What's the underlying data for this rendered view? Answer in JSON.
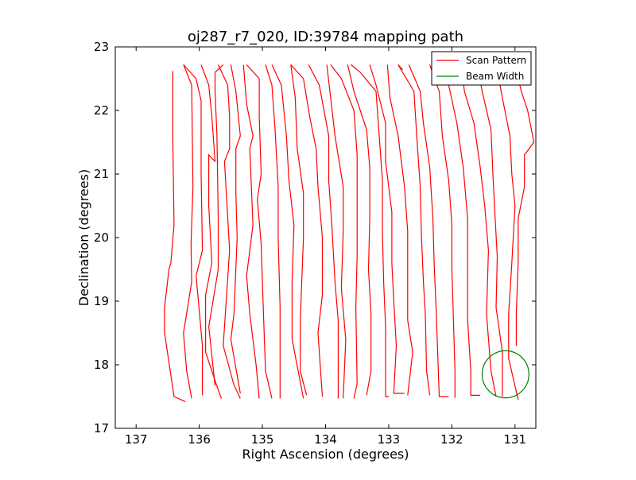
{
  "chart_data": {
    "type": "line",
    "title": "oj287_r7_020, ID:39784 mapping path",
    "xlabel": "Right Ascension (degrees)",
    "ylabel": "Declination (degrees)",
    "xlim": [
      137.33,
      130.67
    ],
    "ylim": [
      17,
      23
    ],
    "x_inverted": true,
    "xticks": [
      137,
      136,
      135,
      134,
      133,
      132,
      131
    ],
    "xtick_labels": [
      "137",
      "136",
      "135",
      "134",
      "133",
      "132",
      "131"
    ],
    "yticks": [
      17,
      18,
      19,
      20,
      21,
      22,
      23
    ],
    "ytick_labels": [
      "17",
      "18",
      "19",
      "20",
      "21",
      "22",
      "23"
    ],
    "grid": false,
    "legend_position": "top-right",
    "legend": [
      {
        "label": "Scan Pattern",
        "color": "#ff0000",
        "marker": "line"
      },
      {
        "label": "Beam Width",
        "color": "#008000",
        "marker": "line"
      }
    ],
    "series": [
      {
        "name": "Scan Pattern",
        "color": "#ff0000",
        "segments": [
          [
            [
              136.42,
              22.62
            ],
            [
              136.42,
              21.6
            ],
            [
              136.4,
              20.2
            ],
            [
              136.45,
              19.6
            ],
            [
              136.48,
              19.5
            ],
            [
              136.55,
              18.9
            ],
            [
              136.55,
              18.5
            ],
            [
              136.4,
              17.5
            ],
            [
              136.22,
              17.42
            ]
          ],
          [
            [
              136.25,
              22.72
            ],
            [
              136.12,
              22.4
            ],
            [
              136.1,
              20.8
            ],
            [
              136.13,
              19.9
            ],
            [
              136.12,
              19.3
            ],
            [
              136.25,
              18.5
            ],
            [
              136.2,
              17.9
            ],
            [
              136.12,
              17.47
            ]
          ],
          [
            [
              136.25,
              22.72
            ],
            [
              136.05,
              22.5
            ],
            [
              135.97,
              22.15
            ],
            [
              135.97,
              21.0
            ],
            [
              135.95,
              19.8
            ],
            [
              136.05,
              19.4
            ],
            [
              135.95,
              18.3
            ],
            [
              135.95,
              17.52
            ]
          ],
          [
            [
              135.97,
              22.72
            ],
            [
              135.85,
              22.4
            ],
            [
              135.8,
              21.9
            ],
            [
              135.75,
              21.2
            ],
            [
              135.85,
              21.3
            ],
            [
              135.85,
              20.5
            ],
            [
              135.8,
              19.6
            ],
            [
              135.9,
              19.1
            ],
            [
              135.9,
              18.2
            ],
            [
              135.75,
              17.75
            ],
            [
              135.65,
              17.47
            ]
          ],
          [
            [
              135.62,
              22.72
            ],
            [
              135.75,
              22.6
            ],
            [
              135.75,
              22.3
            ],
            [
              135.72,
              21.6
            ],
            [
              135.7,
              20.3
            ],
            [
              135.7,
              19.5
            ],
            [
              135.85,
              18.6
            ],
            [
              135.75,
              17.67
            ]
          ],
          [
            [
              135.7,
              22.72
            ],
            [
              135.55,
              22.4
            ],
            [
              135.52,
              21.9
            ],
            [
              135.52,
              21.4
            ],
            [
              135.6,
              21.2
            ],
            [
              135.52,
              19.8
            ],
            [
              135.58,
              18.9
            ],
            [
              135.62,
              18.3
            ],
            [
              135.45,
              17.68
            ],
            [
              135.35,
              17.47
            ]
          ],
          [
            [
              135.5,
              22.72
            ],
            [
              135.42,
              22.3
            ],
            [
              135.35,
              21.6
            ],
            [
              135.42,
              21.4
            ],
            [
              135.42,
              20.7
            ],
            [
              135.4,
              20.0
            ],
            [
              135.45,
              18.8
            ],
            [
              135.5,
              18.4
            ],
            [
              135.35,
              17.55
            ]
          ],
          [
            [
              135.3,
              22.72
            ],
            [
              135.25,
              22.1
            ],
            [
              135.15,
              21.6
            ],
            [
              135.2,
              21.4
            ],
            [
              135.15,
              20.2
            ],
            [
              135.25,
              19.4
            ],
            [
              135.2,
              18.8
            ],
            [
              135.1,
              18.0
            ],
            [
              135.05,
              17.47
            ]
          ],
          [
            [
              135.25,
              22.72
            ],
            [
              135.05,
              22.5
            ],
            [
              135.05,
              21.9
            ],
            [
              135.02,
              21.0
            ],
            [
              135.08,
              20.6
            ],
            [
              135.02,
              19.9
            ],
            [
              134.98,
              18.7
            ],
            [
              134.95,
              17.9
            ],
            [
              134.85,
              17.47
            ]
          ],
          [
            [
              134.95,
              22.72
            ],
            [
              134.85,
              22.4
            ],
            [
              134.8,
              21.7
            ],
            [
              134.75,
              20.8
            ],
            [
              134.75,
              20.0
            ],
            [
              134.72,
              18.9
            ],
            [
              134.72,
              18.2
            ],
            [
              134.72,
              17.47
            ]
          ],
          [
            [
              134.85,
              22.72
            ],
            [
              134.7,
              22.4
            ],
            [
              134.62,
              21.6
            ],
            [
              134.58,
              20.9
            ],
            [
              134.5,
              20.2
            ],
            [
              134.53,
              19.3
            ],
            [
              134.53,
              18.4
            ],
            [
              134.35,
              17.47
            ]
          ],
          [
            [
              134.55,
              22.72
            ],
            [
              134.48,
              22.2
            ],
            [
              134.45,
              21.4
            ],
            [
              134.35,
              20.7
            ],
            [
              134.35,
              20.0
            ],
            [
              134.4,
              18.7
            ],
            [
              134.4,
              17.9
            ],
            [
              134.3,
              17.52
            ]
          ],
          [
            [
              134.55,
              22.72
            ],
            [
              134.35,
              22.5
            ],
            [
              134.25,
              21.9
            ],
            [
              134.15,
              21.4
            ],
            [
              134.12,
              20.8
            ],
            [
              134.05,
              20.0
            ],
            [
              134.05,
              19.1
            ],
            [
              134.12,
              18.5
            ],
            [
              134.05,
              17.5
            ]
          ],
          [
            [
              134.27,
              22.72
            ],
            [
              134.1,
              22.4
            ],
            [
              133.95,
              21.6
            ],
            [
              133.95,
              20.9
            ],
            [
              133.9,
              20.2
            ],
            [
              133.85,
              19.3
            ],
            [
              133.8,
              18.7
            ],
            [
              133.8,
              17.9
            ],
            [
              133.8,
              17.47
            ]
          ],
          [
            [
              133.98,
              22.72
            ],
            [
              133.92,
              22.2
            ],
            [
              133.85,
              21.6
            ],
            [
              133.72,
              20.8
            ],
            [
              133.72,
              20.1
            ],
            [
              133.75,
              19.2
            ],
            [
              133.68,
              18.4
            ],
            [
              133.72,
              17.47
            ]
          ],
          [
            [
              133.92,
              22.72
            ],
            [
              133.75,
              22.5
            ],
            [
              133.55,
              22.0
            ],
            [
              133.5,
              21.3
            ],
            [
              133.5,
              20.5
            ],
            [
              133.5,
              19.7
            ],
            [
              133.52,
              18.9
            ],
            [
              133.5,
              17.7
            ],
            [
              133.55,
              17.47
            ]
          ],
          [
            [
              133.65,
              22.72
            ],
            [
              133.55,
              22.3
            ],
            [
              133.35,
              21.7
            ],
            [
              133.3,
              21.1
            ],
            [
              133.3,
              20.3
            ],
            [
              133.32,
              19.5
            ],
            [
              133.28,
              18.8
            ],
            [
              133.28,
              17.9
            ],
            [
              133.35,
              17.52
            ]
          ],
          [
            [
              133.6,
              22.72
            ],
            [
              133.45,
              22.6
            ],
            [
              133.2,
              22.3
            ],
            [
              133.15,
              21.6
            ],
            [
              133.1,
              20.9
            ],
            [
              133.1,
              20.1
            ],
            [
              133.08,
              19.3
            ],
            [
              133.05,
              18.6
            ],
            [
              133.05,
              17.5
            ],
            [
              133.0,
              17.5
            ]
          ],
          [
            [
              133.3,
              22.72
            ],
            [
              133.2,
              22.4
            ],
            [
              133.05,
              21.8
            ],
            [
              133.05,
              21.2
            ],
            [
              132.95,
              20.4
            ],
            [
              132.95,
              19.6
            ],
            [
              132.92,
              19.0
            ],
            [
              132.88,
              18.3
            ],
            [
              132.92,
              17.55
            ],
            [
              132.75,
              17.55
            ]
          ],
          [
            [
              133.02,
              22.72
            ],
            [
              132.98,
              22.2
            ],
            [
              132.85,
              21.6
            ],
            [
              132.75,
              20.8
            ],
            [
              132.7,
              20.1
            ],
            [
              132.7,
              19.4
            ],
            [
              132.7,
              18.7
            ],
            [
              132.62,
              18.2
            ],
            [
              132.7,
              17.52
            ]
          ],
          [
            [
              132.78,
              22.64
            ],
            [
              132.85,
              22.72
            ],
            [
              132.6,
              22.3
            ],
            [
              132.55,
              21.5
            ],
            [
              132.5,
              20.8
            ],
            [
              132.48,
              20.0
            ],
            [
              132.45,
              19.3
            ],
            [
              132.42,
              18.8
            ],
            [
              132.4,
              17.9
            ],
            [
              132.35,
              17.52
            ]
          ],
          [
            [
              132.68,
              22.72
            ],
            [
              132.5,
              22.3
            ],
            [
              132.45,
              21.8
            ],
            [
              132.35,
              21.1
            ],
            [
              132.3,
              20.3
            ],
            [
              132.28,
              19.6
            ],
            [
              132.25,
              18.9
            ],
            [
              132.2,
              17.5
            ],
            [
              132.05,
              17.5
            ]
          ],
          [
            [
              132.35,
              22.72
            ],
            [
              132.2,
              22.3
            ],
            [
              132.15,
              21.6
            ],
            [
              132.05,
              20.9
            ],
            [
              132.0,
              20.2
            ],
            [
              132.0,
              19.5
            ],
            [
              131.98,
              18.9
            ],
            [
              131.95,
              17.9
            ],
            [
              131.95,
              17.48
            ]
          ],
          [
            [
              132.08,
              22.72
            ],
            [
              132.05,
              22.4
            ],
            [
              131.92,
              21.8
            ],
            [
              131.82,
              21.1
            ],
            [
              131.75,
              20.3
            ],
            [
              131.75,
              19.6
            ],
            [
              131.75,
              18.7
            ],
            [
              131.7,
              17.9
            ],
            [
              131.7,
              17.52
            ],
            [
              131.55,
              17.52
            ]
          ],
          [
            [
              131.85,
              22.72
            ],
            [
              131.8,
              22.3
            ],
            [
              131.65,
              21.8
            ],
            [
              131.55,
              21.1
            ],
            [
              131.48,
              20.5
            ],
            [
              131.42,
              19.8
            ],
            [
              131.45,
              18.8
            ],
            [
              131.38,
              17.9
            ],
            [
              131.3,
              17.5
            ]
          ],
          [
            [
              131.6,
              22.72
            ],
            [
              131.52,
              22.3
            ],
            [
              131.38,
              21.7
            ],
            [
              131.35,
              21.0
            ],
            [
              131.32,
              20.4
            ],
            [
              131.28,
              19.7
            ],
            [
              131.3,
              18.9
            ],
            [
              131.2,
              18.2
            ],
            [
              131.2,
              17.5
            ]
          ],
          [
            [
              131.3,
              22.72
            ],
            [
              131.2,
              22.2
            ],
            [
              131.08,
              21.6
            ],
            [
              131.05,
              21.0
            ],
            [
              131.0,
              20.5
            ],
            [
              131.05,
              19.6
            ],
            [
              131.1,
              18.8
            ],
            [
              131.1,
              18.1
            ],
            [
              130.95,
              17.45
            ]
          ],
          [
            [
              131.0,
              22.72
            ],
            [
              130.9,
              22.3
            ],
            [
              130.8,
              22.0
            ],
            [
              130.72,
              21.6
            ],
            [
              130.7,
              21.5
            ],
            [
              130.85,
              21.3
            ],
            [
              130.85,
              20.8
            ],
            [
              130.95,
              20.3
            ],
            [
              130.95,
              19.6
            ],
            [
              130.98,
              18.8
            ],
            [
              130.98,
              18.3
            ]
          ]
        ]
      },
      {
        "name": "Beam Width",
        "color": "#008000",
        "shape": "circle",
        "center": [
          131.15,
          17.85
        ],
        "radius_x": 0.37,
        "radius_y": 0.37
      }
    ]
  }
}
